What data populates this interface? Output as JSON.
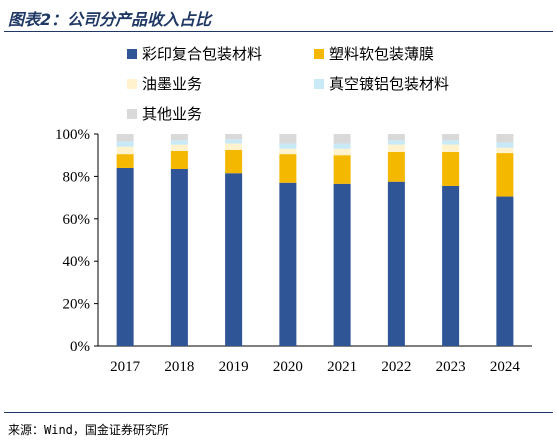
{
  "title": "图表2：公司分产品收入占比",
  "source": "来源：Wind，国金证券研究所",
  "chart_data": {
    "type": "bar",
    "stacked": true,
    "categories": [
      "2017",
      "2018",
      "2019",
      "2020",
      "2021",
      "2022",
      "2023",
      "2024"
    ],
    "series": [
      {
        "name": "彩印复合包装材料",
        "color": "#2f5597",
        "values": [
          84,
          83.5,
          81.5,
          77,
          76.5,
          77.5,
          75.5,
          70.5
        ]
      },
      {
        "name": "塑料软包装薄膜",
        "color": "#f5b800",
        "values": [
          6.5,
          8.5,
          11,
          13.5,
          13.5,
          14,
          16,
          20.5
        ]
      },
      {
        "name": "油墨业务",
        "color": "#fff2cc",
        "values": [
          3.5,
          3,
          3,
          2.5,
          3,
          3.5,
          3.5,
          2.5
        ]
      },
      {
        "name": "真空镀铝包装材料",
        "color": "#c9e9f6",
        "values": [
          2.5,
          2,
          2,
          2.5,
          2.5,
          2,
          2,
          2.5
        ]
      },
      {
        "name": "其他业务",
        "color": "#d9d9d9",
        "values": [
          3.5,
          3,
          2.5,
          4.5,
          4.5,
          3,
          3,
          4
        ]
      }
    ],
    "ylim": [
      0,
      100
    ],
    "yticks": [
      "0%",
      "20%",
      "40%",
      "60%",
      "80%",
      "100%"
    ],
    "grid": false,
    "legend_position": "top"
  }
}
